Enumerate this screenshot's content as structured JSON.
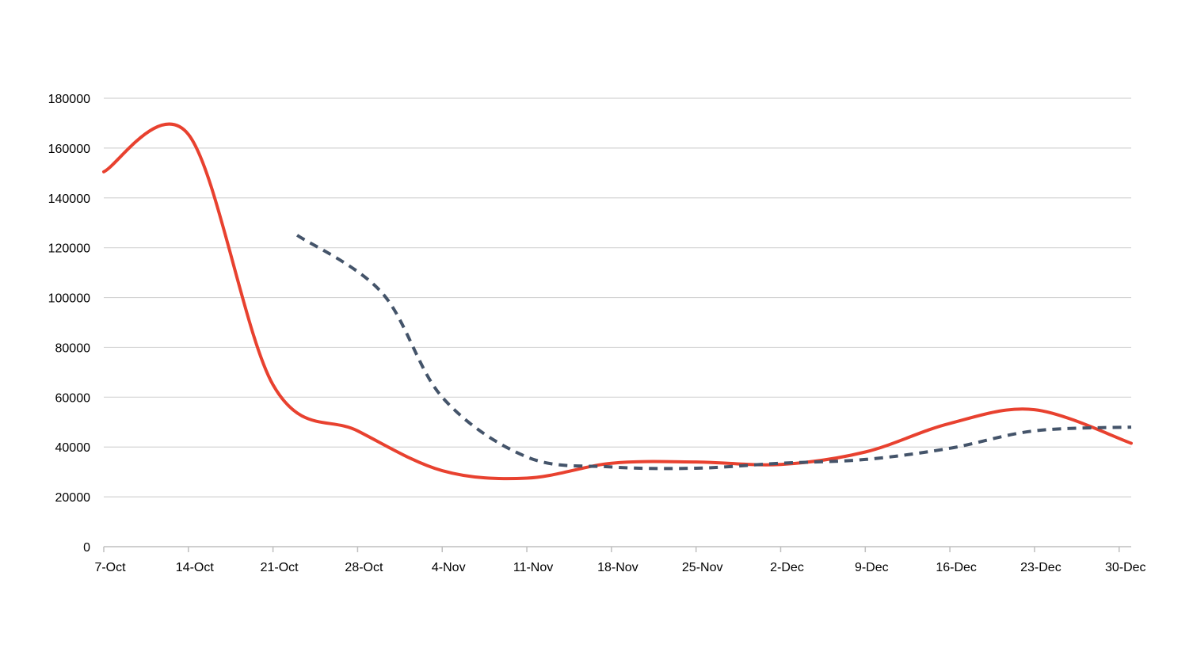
{
  "chart_data": {
    "type": "line",
    "title": "",
    "xlabel": "",
    "ylabel": "",
    "x_tick_labels": [
      "7-Oct",
      "14-Oct",
      "21-Oct",
      "28-Oct",
      "4-Nov",
      "11-Nov",
      "18-Nov",
      "25-Nov",
      "2-Dec",
      "9-Dec",
      "16-Dec",
      "23-Dec",
      "30-Dec"
    ],
    "y_ticks": [
      0,
      20000,
      40000,
      60000,
      80000,
      100000,
      120000,
      140000,
      160000,
      180000
    ],
    "ylim": [
      0,
      180000
    ],
    "xlim": [
      "7-Oct",
      "31-Dec"
    ],
    "grid": "horizontal",
    "legend": "none",
    "series": [
      {
        "color": "#e8412f",
        "style": "solid",
        "points": [
          {
            "x": "7-Oct",
            "y": 150500
          },
          {
            "x": "14-Oct",
            "y": 165500
          },
          {
            "x": "21-Oct",
            "y": 65000
          },
          {
            "x": "28-Oct",
            "y": 46500
          },
          {
            "x": "4-Nov",
            "y": 30500
          },
          {
            "x": "11-Nov",
            "y": 27500
          },
          {
            "x": "18-Nov",
            "y": 33500
          },
          {
            "x": "25-Nov",
            "y": 34000
          },
          {
            "x": "2-Dec",
            "y": 33000
          },
          {
            "x": "9-Dec",
            "y": 38000
          },
          {
            "x": "16-Dec",
            "y": 49500
          },
          {
            "x": "23-Dec",
            "y": 55000
          },
          {
            "x": "31-Dec",
            "y": 41500
          }
        ]
      },
      {
        "color": "#44546a",
        "style": "dashed",
        "points": [
          {
            "x": "23-Oct",
            "y": 125000
          },
          {
            "x": "30-Oct",
            "y": 102000
          },
          {
            "x": "4-Nov",
            "y": 60000
          },
          {
            "x": "11-Nov",
            "y": 36000
          },
          {
            "x": "18-Nov",
            "y": 32000
          },
          {
            "x": "25-Nov",
            "y": 31500
          },
          {
            "x": "2-Dec",
            "y": 33500
          },
          {
            "x": "9-Dec",
            "y": 35000
          },
          {
            "x": "16-Dec",
            "y": 39500
          },
          {
            "x": "23-Dec",
            "y": 46500
          },
          {
            "x": "31-Dec",
            "y": 48000
          }
        ]
      }
    ]
  }
}
